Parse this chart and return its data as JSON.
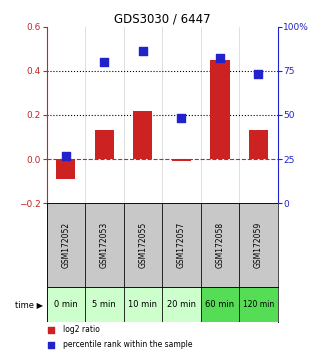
{
  "title": "GDS3030 / 6447",
  "samples": [
    "GSM172052",
    "GSM172053",
    "GSM172055",
    "GSM172057",
    "GSM172058",
    "GSM172059"
  ],
  "time_labels": [
    "0 min",
    "5 min",
    "10 min",
    "20 min",
    "60 min",
    "120 min"
  ],
  "log2_ratio": [
    -0.09,
    0.13,
    0.22,
    -0.01,
    0.45,
    0.13
  ],
  "percentile_rank": [
    27,
    80,
    86,
    48,
    82,
    73
  ],
  "left_ylim": [
    -0.2,
    0.6
  ],
  "right_ylim": [
    0,
    100
  ],
  "left_yticks": [
    -0.2,
    0.0,
    0.2,
    0.4,
    0.6
  ],
  "right_yticks": [
    0,
    25,
    50,
    75,
    100
  ],
  "right_yticklabels": [
    "0",
    "25",
    "50",
    "75",
    "100%"
  ],
  "bar_color": "#cc2222",
  "dot_color": "#2222cc",
  "hline_y": 0.0,
  "dotted_lines": [
    0.2,
    0.4
  ],
  "gray_bg": "#c8c8c8",
  "green_bg_light": "#ccffcc",
  "green_bg_dark": "#55dd55",
  "legend_log2": "log2 ratio",
  "legend_pct": "percentile rank within the sample"
}
